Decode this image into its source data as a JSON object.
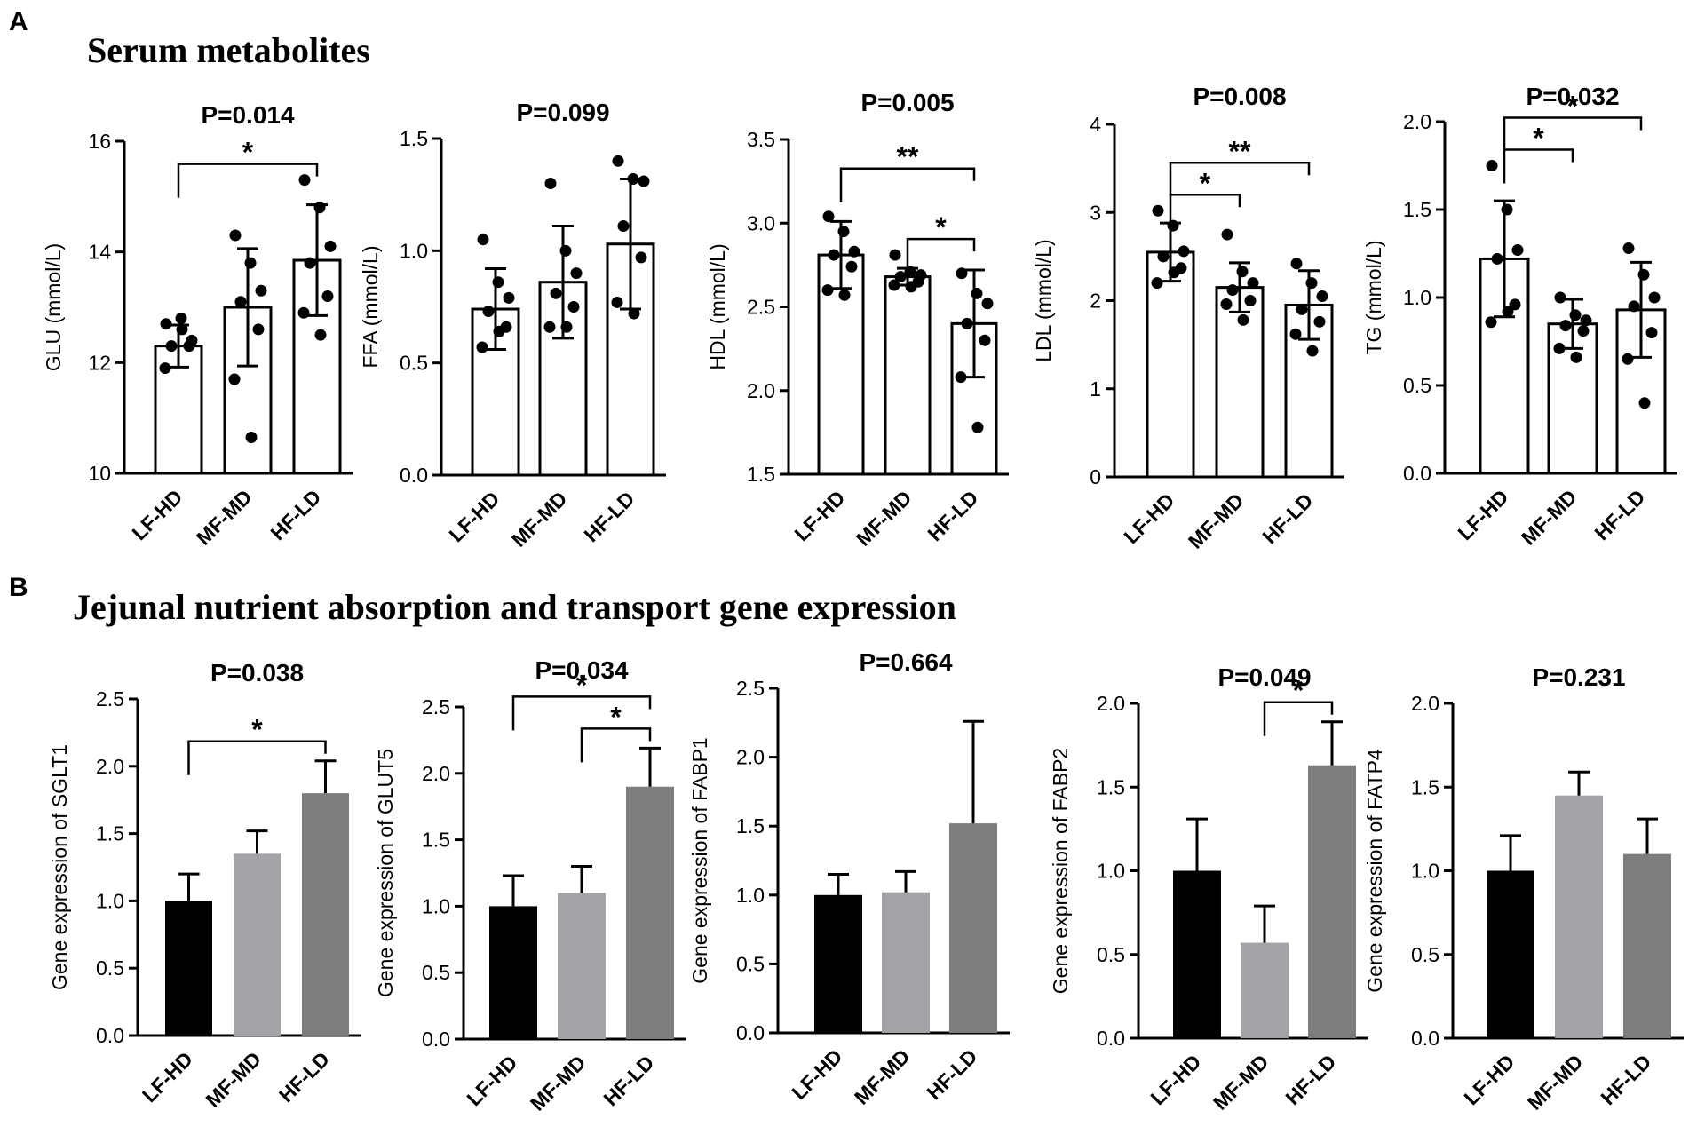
{
  "figure": {
    "panel_a_label": "A",
    "panel_a_title": "Serum metabolites",
    "panel_b_label": "B",
    "panel_b_title": "Jejunal nutrient absorption and transport gene expression",
    "colors": {
      "LF-HD": "#000000",
      "MF-MD": "#a3a3a8",
      "HF-LD": "#7d7d7d",
      "axis": "#000000"
    }
  },
  "chart_data": [
    {
      "id": "glu",
      "type": "bar",
      "style": "dot",
      "title": "P=0.014",
      "ylabel": "GLU (mmol/L)",
      "categories": [
        "LF-HD",
        "MF-MD",
        "HF-LD"
      ],
      "ylim": [
        10,
        16
      ],
      "yticks": [
        10,
        12,
        14,
        16
      ],
      "ytick_labels": [
        "10",
        "12",
        "14",
        "16"
      ],
      "values": [
        12.3,
        13.0,
        13.85
      ],
      "errors": [
        0.38,
        1.06,
        1.0
      ],
      "points": [
        [
          12.7,
          12.8,
          12.4,
          12.3,
          12.3,
          11.9,
          12.6
        ],
        [
          14.3,
          13.8,
          13.3,
          13.1,
          12.6,
          11.7,
          10.65
        ],
        [
          15.3,
          14.8,
          14.1,
          13.8,
          13.2,
          12.9,
          12.5
        ]
      ],
      "annotations": [
        {
          "from": 0,
          "to": 2,
          "label": "*"
        }
      ]
    },
    {
      "id": "ffa",
      "type": "bar",
      "style": "dot",
      "title": "P=0.099",
      "ylabel": "FFA (mmol/L)",
      "categories": [
        "LF-HD",
        "MF-MD",
        "HF-LD"
      ],
      "ylim": [
        0,
        1.5
      ],
      "yticks": [
        0,
        0.5,
        1.0,
        1.5
      ],
      "ytick_labels": [
        "0.0",
        "0.5",
        "1.0",
        "1.5"
      ],
      "values": [
        0.74,
        0.86,
        1.03
      ],
      "errors": [
        0.18,
        0.25,
        0.29
      ],
      "points": [
        [
          1.05,
          0.86,
          0.79,
          0.73,
          0.66,
          0.57,
          0.64
        ],
        [
          1.3,
          1.0,
          0.9,
          0.81,
          0.75,
          0.66,
          0.66
        ],
        [
          1.4,
          1.32,
          1.31,
          1.11,
          0.97,
          0.77,
          0.72
        ]
      ],
      "annotations": []
    },
    {
      "id": "hdl",
      "type": "bar",
      "style": "dot",
      "title": "P=0.005",
      "ylabel": "HDL (mmol/L)",
      "categories": [
        "LF-HD",
        "MF-MD",
        "HF-LD"
      ],
      "ylim": [
        1.5,
        3.5
      ],
      "yticks": [
        1.5,
        2.0,
        2.5,
        3.0,
        3.5
      ],
      "ytick_labels": [
        "1.5",
        "2.0",
        "2.5",
        "3.0",
        "3.5"
      ],
      "values": [
        2.81,
        2.68,
        2.4
      ],
      "errors": [
        0.2,
        0.05,
        0.32
      ],
      "points": [
        [
          3.04,
          2.95,
          2.83,
          2.81,
          2.74,
          2.6,
          2.57
        ],
        [
          2.81,
          2.71,
          2.69,
          2.68,
          2.65,
          2.63,
          2.62
        ],
        [
          2.7,
          2.58,
          2.52,
          2.4,
          2.3,
          2.08,
          1.78
        ]
      ],
      "annotations": [
        {
          "from": 0,
          "to": 2,
          "label": "**"
        },
        {
          "from": 1,
          "to": 2,
          "label": "*"
        }
      ]
    },
    {
      "id": "ldl",
      "type": "bar",
      "style": "dot",
      "title": "P=0.008",
      "ylabel": "LDL (mmol/L)",
      "categories": [
        "LF-HD",
        "MF-MD",
        "HF-LD"
      ],
      "ylim": [
        0,
        4
      ],
      "yticks": [
        0,
        1,
        2,
        3,
        4
      ],
      "ytick_labels": [
        "0",
        "1",
        "2",
        "3",
        "4"
      ],
      "values": [
        2.55,
        2.15,
        1.95
      ],
      "errors": [
        0.33,
        0.28,
        0.39
      ],
      "points": [
        [
          3.02,
          2.85,
          2.56,
          2.5,
          2.37,
          2.2,
          2.32
        ],
        [
          2.75,
          2.33,
          2.2,
          2.12,
          2.0,
          1.96,
          1.78
        ],
        [
          2.42,
          2.2,
          2.05,
          1.9,
          1.76,
          1.62,
          1.43
        ]
      ],
      "annotations": [
        {
          "from": 0,
          "to": 1,
          "label": "*"
        },
        {
          "from": 0,
          "to": 2,
          "label": "**"
        }
      ]
    },
    {
      "id": "tg",
      "type": "bar",
      "style": "dot",
      "title": "P=0.032",
      "ylabel": "TG (mmol/L)",
      "categories": [
        "LF-HD",
        "MF-MD",
        "HF-LD"
      ],
      "ylim": [
        0,
        2.0
      ],
      "yticks": [
        0,
        0.5,
        1.0,
        1.5,
        2.0
      ],
      "ytick_labels": [
        "0.0",
        "0.5",
        "1.0",
        "1.5",
        "2.0"
      ],
      "values": [
        1.22,
        0.85,
        0.93
      ],
      "errors": [
        0.33,
        0.14,
        0.27
      ],
      "points": [
        [
          1.75,
          1.5,
          1.27,
          1.22,
          0.96,
          0.86,
          0.92
        ],
        [
          1.0,
          0.9,
          0.87,
          0.84,
          0.81,
          0.71,
          0.66
        ],
        [
          1.28,
          1.13,
          1.0,
          0.95,
          0.8,
          0.65,
          0.4
        ]
      ],
      "annotations": [
        {
          "from": 0,
          "to": 1,
          "label": "*"
        },
        {
          "from": 0,
          "to": 2,
          "label": "*"
        }
      ]
    },
    {
      "id": "sglt1",
      "type": "bar",
      "style": "fill",
      "title": "P=0.038",
      "ylabel": "Gene expression of SGLT1",
      "categories": [
        "LF-HD",
        "MF-MD",
        "HF-LD"
      ],
      "ylim": [
        0,
        2.5
      ],
      "yticks": [
        0,
        0.5,
        1.0,
        1.5,
        2.0,
        2.5
      ],
      "ytick_labels": [
        "0.0",
        "0.5",
        "1.0",
        "1.5",
        "2.0",
        "2.5"
      ],
      "values": [
        1.0,
        1.35,
        1.8
      ],
      "errors": [
        0.2,
        0.17,
        0.24
      ],
      "annotations": [
        {
          "from": 0,
          "to": 2,
          "label": "*"
        }
      ]
    },
    {
      "id": "glut5",
      "type": "bar",
      "style": "fill",
      "title": "P=0.034",
      "ylabel": "Gene expression of GLUT5",
      "categories": [
        "LF-HD",
        "MF-MD",
        "HF-LD"
      ],
      "ylim": [
        0,
        2.5
      ],
      "yticks": [
        0,
        0.5,
        1.0,
        1.5,
        2.0,
        2.5
      ],
      "ytick_labels": [
        "0.0",
        "0.5",
        "1.0",
        "1.5",
        "2.0",
        "2.5"
      ],
      "values": [
        1.0,
        1.1,
        1.9
      ],
      "errors": [
        0.23,
        0.2,
        0.29
      ],
      "annotations": [
        {
          "from": 0,
          "to": 2,
          "label": "*"
        },
        {
          "from": 1,
          "to": 2,
          "label": "*"
        }
      ]
    },
    {
      "id": "fabp1",
      "type": "bar",
      "style": "fill",
      "title": "P=0.664",
      "ylabel": "Gene expression of FABP1",
      "categories": [
        "LF-HD",
        "MF-MD",
        "HF-LD"
      ],
      "ylim": [
        0,
        2.5
      ],
      "yticks": [
        0,
        0.5,
        1.0,
        1.5,
        2.0,
        2.5
      ],
      "ytick_labels": [
        "0.0",
        "0.5",
        "1.0",
        "1.5",
        "2.0",
        "2.5"
      ],
      "values": [
        1.0,
        1.02,
        1.52
      ],
      "errors": [
        0.15,
        0.15,
        0.74
      ],
      "annotations": []
    },
    {
      "id": "fabp2",
      "type": "bar",
      "style": "fill",
      "title": "P=0.049",
      "ylabel": "Gene expression of FABP2",
      "categories": [
        "LF-HD",
        "MF-MD",
        "HF-LD"
      ],
      "ylim": [
        0,
        2.0
      ],
      "yticks": [
        0,
        0.5,
        1.0,
        1.5,
        2.0
      ],
      "ytick_labels": [
        "0.0",
        "0.5",
        "1.0",
        "1.5",
        "2.0"
      ],
      "values": [
        1.0,
        0.57,
        1.63
      ],
      "errors": [
        0.31,
        0.22,
        0.26
      ],
      "annotations": [
        {
          "from": 1,
          "to": 2,
          "label": "*"
        }
      ]
    },
    {
      "id": "fatp4",
      "type": "bar",
      "style": "fill",
      "title": "P=0.231",
      "ylabel": "Gene expression of FATP4",
      "categories": [
        "LF-HD",
        "MF-MD",
        "HF-LD"
      ],
      "ylim": [
        0,
        2.0
      ],
      "yticks": [
        0,
        0.5,
        1.0,
        1.5,
        2.0
      ],
      "ytick_labels": [
        "0.0",
        "0.5",
        "1.0",
        "1.5",
        "2.0"
      ],
      "values": [
        1.0,
        1.45,
        1.1
      ],
      "errors": [
        0.21,
        0.14,
        0.21
      ],
      "annotations": []
    }
  ]
}
